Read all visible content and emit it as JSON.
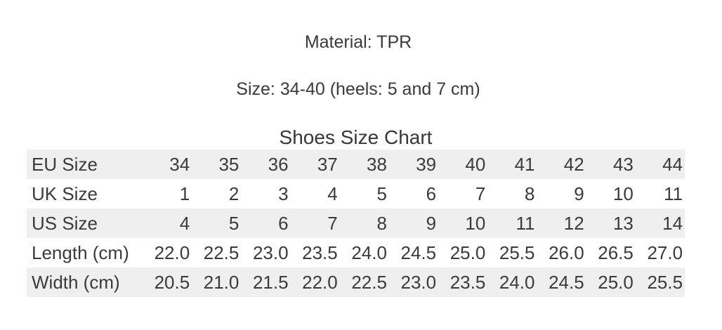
{
  "description": {
    "material_line": "Material: TPR",
    "size_line": "Size: 34-40 (heels: 5 and 7 cm)"
  },
  "size_chart": {
    "title": "Shoes Size Chart",
    "rows": [
      {
        "label": "EU Size",
        "values": [
          "34",
          "35",
          "36",
          "37",
          "38",
          "39",
          "40",
          "41",
          "42",
          "43",
          "44"
        ]
      },
      {
        "label": "UK Size",
        "values": [
          "1",
          "2",
          "3",
          "4",
          "5",
          "6",
          "7",
          "8",
          "9",
          "10",
          "11"
        ]
      },
      {
        "label": "US Size",
        "values": [
          "4",
          "5",
          "6",
          "7",
          "8",
          "9",
          "10",
          "11",
          "12",
          "13",
          "14"
        ]
      },
      {
        "label": "Length (cm)",
        "values": [
          "22.0",
          "22.5",
          "23.0",
          "23.5",
          "24.0",
          "24.5",
          "25.0",
          "25.5",
          "26.0",
          "26.5",
          "27.0"
        ]
      },
      {
        "label": "Width (cm)",
        "values": [
          "20.5",
          "21.0",
          "21.5",
          "22.0",
          "22.5",
          "23.0",
          "23.5",
          "24.0",
          "24.5",
          "25.0",
          "25.5"
        ]
      }
    ],
    "colors": {
      "stripe": "#efefef",
      "text": "#3b3b3b",
      "background": "#ffffff"
    }
  }
}
